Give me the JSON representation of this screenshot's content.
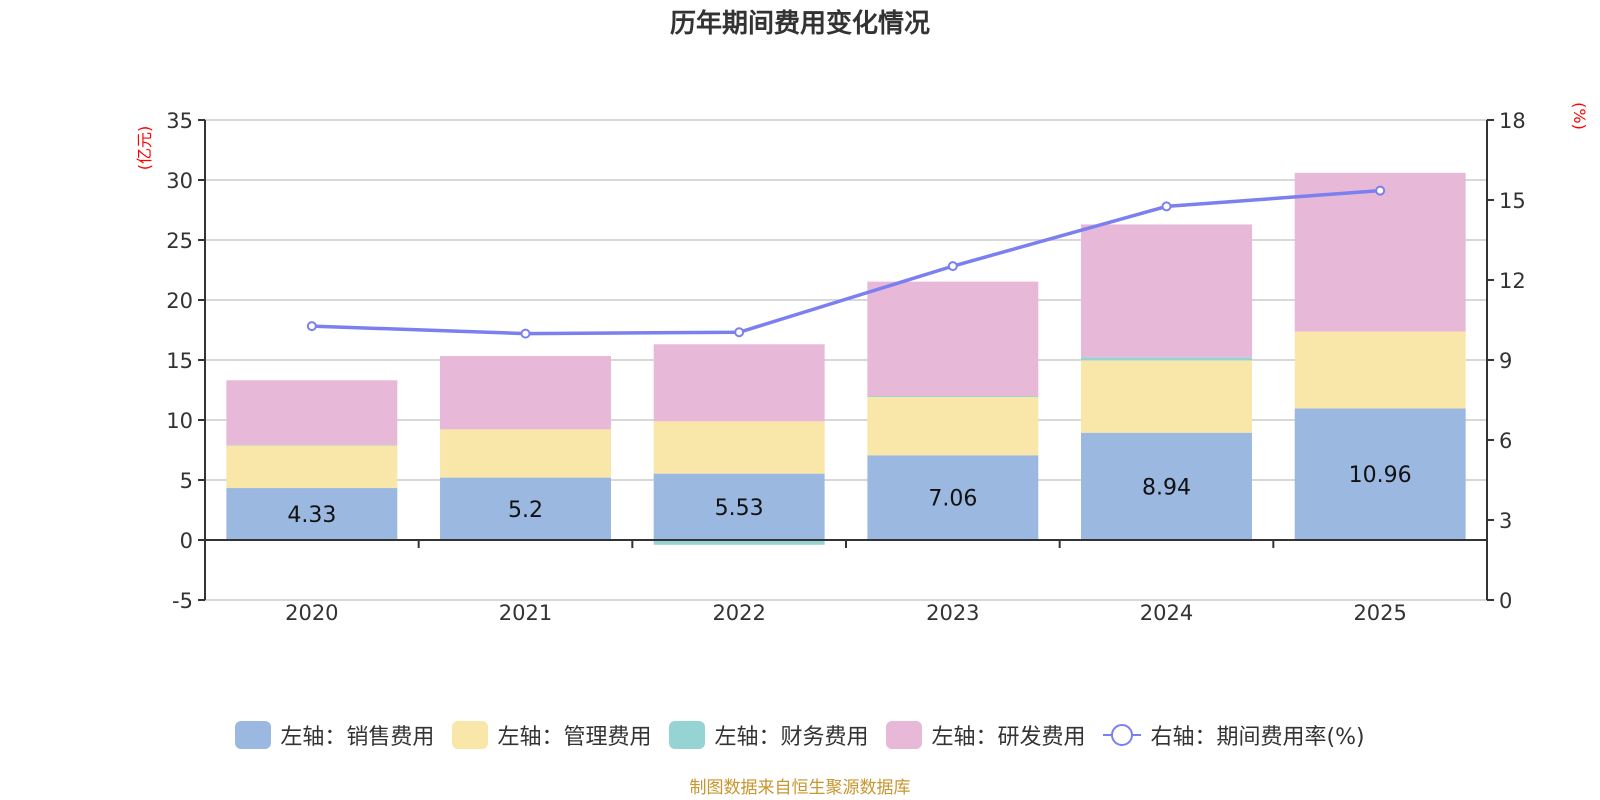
{
  "chart_data": {
    "type": "bar",
    "title": "历年期间费用变化情况",
    "categories": [
      "2020",
      "2021",
      "2022",
      "2023",
      "2024",
      "2025"
    ],
    "left_axis": {
      "unit_label": "(亿元)",
      "ylim": [
        -5,
        35
      ],
      "ticks": [
        -5,
        0,
        5,
        10,
        15,
        20,
        25,
        30,
        35
      ]
    },
    "right_axis": {
      "unit_label": "(%)",
      "ylim": [
        0,
        18
      ],
      "ticks": [
        0,
        3,
        6,
        9,
        12,
        15,
        18
      ]
    },
    "stacked": true,
    "grid": true,
    "legend_position": "bottom",
    "series": [
      {
        "name": "左轴：销售费用",
        "axis": "left",
        "type": "bar",
        "color": "#9bb8e1",
        "values": [
          4.33,
          5.2,
          5.53,
          7.06,
          8.94,
          10.96
        ],
        "labels_shown": true
      },
      {
        "name": "左轴：管理费用",
        "axis": "left",
        "type": "bar",
        "color": "#f8e7a9",
        "values": [
          3.56,
          4.02,
          4.36,
          4.86,
          6.03,
          6.41
        ],
        "labels_shown": false
      },
      {
        "name": "左轴：财务费用",
        "axis": "left",
        "type": "bar",
        "color": "#96d4d4",
        "values": [
          0.03,
          -0.02,
          -0.4,
          0.08,
          0.25,
          -0.05
        ],
        "labels_shown": false
      },
      {
        "name": "左轴：研发费用",
        "axis": "left",
        "type": "bar",
        "color": "#e8b8d8",
        "values": [
          5.39,
          6.11,
          6.42,
          9.53,
          11.08,
          13.23
        ],
        "labels_shown": false
      },
      {
        "name": "右轴：期间费用率(%)",
        "axis": "right",
        "type": "line",
        "color": "#7b7ff0",
        "values": [
          10.27,
          9.99,
          10.04,
          12.52,
          14.76,
          15.35
        ]
      }
    ]
  },
  "footer": {
    "source": "制图数据来自恒生聚源数据库"
  }
}
